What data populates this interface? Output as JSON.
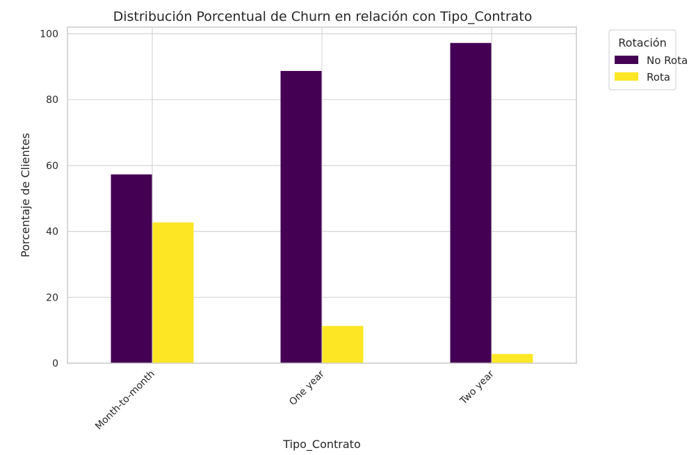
{
  "chart_data": {
    "type": "bar",
    "title": "Distribución Porcentual de Churn en relación con Tipo_Contrato",
    "xlabel": "Tipo_Contrato",
    "ylabel": "Porcentaje de Clientes",
    "categories": [
      "Month-to-month",
      "One year",
      "Two year"
    ],
    "series": [
      {
        "name": "No Rota",
        "color": "#440154",
        "values": [
          57.3,
          88.7,
          97.2
        ]
      },
      {
        "name": "Rota",
        "color": "#fde725",
        "values": [
          42.7,
          11.3,
          2.8
        ]
      }
    ],
    "ylim": [
      0,
      102
    ],
    "yticks": [
      0,
      20,
      40,
      60,
      80,
      100
    ],
    "grid": true,
    "legend": {
      "title": "Rotación",
      "placement": "outside-top-right"
    }
  }
}
